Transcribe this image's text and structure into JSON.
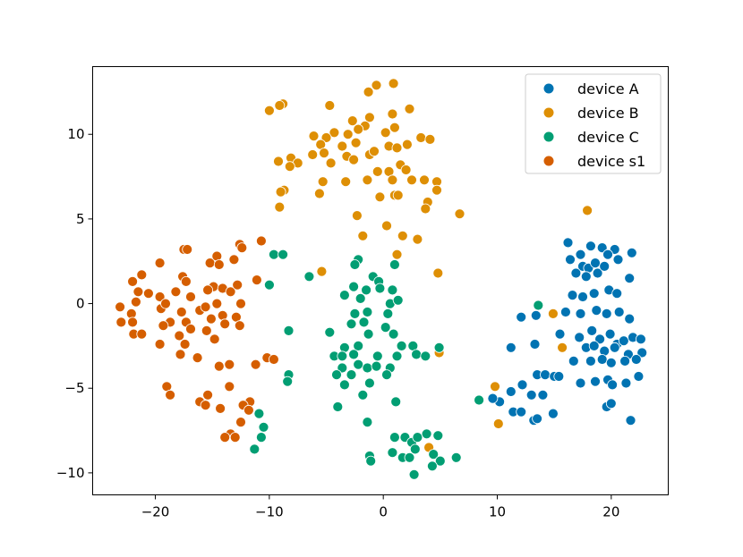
{
  "chart_data": {
    "type": "scatter",
    "title": "",
    "xlabel": "",
    "ylabel": "",
    "xlim": [
      -25.5,
      25.0
    ],
    "ylim": [
      -11.3,
      14.0
    ],
    "xticks": [
      -20,
      -10,
      0,
      10,
      20
    ],
    "yticks": [
      -10,
      -5,
      0,
      5,
      10
    ],
    "xtick_labels": [
      "−20",
      "−10",
      "0",
      "10",
      "20"
    ],
    "ytick_labels": [
      "−10",
      "−5",
      "0",
      "5",
      "10"
    ],
    "grid": false,
    "legend_position": "top-right",
    "series": [
      {
        "name": "device A",
        "color": "#0173b2",
        "points": [
          [
            16.2,
            3.6
          ],
          [
            17.3,
            2.9
          ],
          [
            18.2,
            3.4
          ],
          [
            19.2,
            3.3
          ],
          [
            20.3,
            3.2
          ],
          [
            21.8,
            3.0
          ],
          [
            16.4,
            2.6
          ],
          [
            17.5,
            2.2
          ],
          [
            18.0,
            2.1
          ],
          [
            18.6,
            2.4
          ],
          [
            19.7,
            2.9
          ],
          [
            20.6,
            2.6
          ],
          [
            16.9,
            1.8
          ],
          [
            17.8,
            1.6
          ],
          [
            18.8,
            1.8
          ],
          [
            19.4,
            2.2
          ],
          [
            21.6,
            1.5
          ],
          [
            16.6,
            0.5
          ],
          [
            17.5,
            0.4
          ],
          [
            18.5,
            0.6
          ],
          [
            19.8,
            0.8
          ],
          [
            20.5,
            0.6
          ],
          [
            16.0,
            -0.5
          ],
          [
            17.3,
            -0.6
          ],
          [
            18.7,
            -0.4
          ],
          [
            19.6,
            -0.6
          ],
          [
            20.7,
            -0.5
          ],
          [
            21.6,
            -0.9
          ],
          [
            15.5,
            -1.8
          ],
          [
            17.2,
            -2.0
          ],
          [
            18.3,
            -1.6
          ],
          [
            19.0,
            -2.1
          ],
          [
            19.9,
            -1.8
          ],
          [
            20.5,
            -2.4
          ],
          [
            21.1,
            -2.2
          ],
          [
            21.9,
            -2.0
          ],
          [
            22.6,
            -2.1
          ],
          [
            17.8,
            -2.6
          ],
          [
            18.5,
            -2.5
          ],
          [
            19.4,
            -2.8
          ],
          [
            20.3,
            -2.6
          ],
          [
            21.5,
            -3.0
          ],
          [
            22.7,
            -2.9
          ],
          [
            16.7,
            -3.4
          ],
          [
            18.2,
            -3.4
          ],
          [
            19.2,
            -3.3
          ],
          [
            20.0,
            -3.5
          ],
          [
            21.2,
            -3.4
          ],
          [
            22.2,
            -3.3
          ],
          [
            17.3,
            -4.7
          ],
          [
            18.6,
            -4.6
          ],
          [
            19.7,
            -4.5
          ],
          [
            20.1,
            -4.8
          ],
          [
            21.3,
            -4.7
          ],
          [
            22.4,
            -4.3
          ],
          [
            19.6,
            -6.1
          ],
          [
            20.0,
            -5.9
          ],
          [
            21.7,
            -6.9
          ],
          [
            12.1,
            -0.8
          ],
          [
            13.4,
            -0.7
          ],
          [
            11.2,
            -2.6
          ],
          [
            13.3,
            -2.4
          ],
          [
            13.5,
            -4.2
          ],
          [
            14.2,
            -4.2
          ],
          [
            15.0,
            -4.3
          ],
          [
            15.4,
            -4.3
          ],
          [
            12.2,
            -4.8
          ],
          [
            13.0,
            -5.4
          ],
          [
            14.0,
            -5.4
          ],
          [
            11.2,
            -5.2
          ],
          [
            10.2,
            -5.8
          ],
          [
            9.6,
            -5.6
          ],
          [
            11.4,
            -6.4
          ],
          [
            12.1,
            -6.4
          ],
          [
            13.2,
            -6.9
          ],
          [
            13.5,
            -6.8
          ],
          [
            14.9,
            -6.5
          ]
        ]
      },
      {
        "name": "device B",
        "color": "#de8f05",
        "points": [
          [
            -10.0,
            11.4
          ],
          [
            -8.8,
            11.8
          ],
          [
            -9.1,
            11.7
          ],
          [
            0.9,
            13.0
          ],
          [
            -1.3,
            12.5
          ],
          [
            -0.6,
            12.9
          ],
          [
            -4.7,
            11.7
          ],
          [
            -1.2,
            11.0
          ],
          [
            0.8,
            11.2
          ],
          [
            2.3,
            11.5
          ],
          [
            -2.7,
            10.8
          ],
          [
            1.0,
            10.4
          ],
          [
            -4.3,
            10.1
          ],
          [
            -3.1,
            10.0
          ],
          [
            -1.6,
            10.5
          ],
          [
            -2.2,
            10.3
          ],
          [
            0.2,
            10.1
          ],
          [
            -6.1,
            9.9
          ],
          [
            -5.0,
            9.8
          ],
          [
            -3.6,
            9.3
          ],
          [
            -5.5,
            9.4
          ],
          [
            -2.4,
            9.5
          ],
          [
            0.5,
            9.3
          ],
          [
            2.1,
            9.4
          ],
          [
            3.3,
            9.8
          ],
          [
            4.1,
            9.7
          ],
          [
            -5.2,
            8.9
          ],
          [
            -6.2,
            8.8
          ],
          [
            -3.2,
            8.7
          ],
          [
            -1.2,
            8.8
          ],
          [
            -0.8,
            9.0
          ],
          [
            1.2,
            9.2
          ],
          [
            -9.2,
            8.4
          ],
          [
            -8.1,
            8.6
          ],
          [
            -7.5,
            8.3
          ],
          [
            -8.2,
            8.1
          ],
          [
            -4.6,
            8.3
          ],
          [
            -2.6,
            8.5
          ],
          [
            1.5,
            8.2
          ],
          [
            -0.5,
            7.8
          ],
          [
            0.5,
            7.8
          ],
          [
            2.0,
            7.9
          ],
          [
            2.5,
            7.3
          ],
          [
            3.6,
            7.3
          ],
          [
            -5.3,
            7.2
          ],
          [
            -3.3,
            7.2
          ],
          [
            -1.4,
            7.3
          ],
          [
            0.8,
            7.3
          ],
          [
            4.7,
            7.2
          ],
          [
            -8.7,
            6.7
          ],
          [
            -9.0,
            6.6
          ],
          [
            -5.6,
            6.5
          ],
          [
            -0.3,
            6.3
          ],
          [
            1.0,
            6.4
          ],
          [
            1.3,
            6.4
          ],
          [
            4.7,
            6.7
          ],
          [
            3.9,
            6.0
          ],
          [
            3.7,
            5.6
          ],
          [
            -9.1,
            5.7
          ],
          [
            -2.3,
            5.2
          ],
          [
            6.7,
            5.3
          ],
          [
            0.3,
            4.6
          ],
          [
            -1.8,
            4.0
          ],
          [
            1.7,
            4.0
          ],
          [
            3.0,
            3.8
          ],
          [
            1.2,
            2.9
          ],
          [
            4.8,
            1.8
          ],
          [
            -5.4,
            1.9
          ],
          [
            14.9,
            -0.6
          ],
          [
            15.7,
            -2.6
          ],
          [
            4.9,
            -2.9
          ],
          [
            9.8,
            -4.9
          ],
          [
            10.1,
            -7.1
          ],
          [
            4.0,
            -8.5
          ],
          [
            17.9,
            5.5
          ]
        ]
      },
      {
        "name": "device C",
        "color": "#029e73",
        "points": [
          [
            -9.6,
            2.9
          ],
          [
            -8.8,
            2.9
          ],
          [
            -10.0,
            1.1
          ],
          [
            -6.5,
            1.6
          ],
          [
            -2.2,
            2.6
          ],
          [
            -2.5,
            2.3
          ],
          [
            1.0,
            2.3
          ],
          [
            -0.9,
            1.6
          ],
          [
            -0.4,
            1.3
          ],
          [
            -2.6,
            1.0
          ],
          [
            -1.5,
            0.8
          ],
          [
            -0.3,
            0.9
          ],
          [
            0.8,
            0.8
          ],
          [
            -3.4,
            0.5
          ],
          [
            -2.0,
            0.3
          ],
          [
            0.6,
            0.0
          ],
          [
            1.3,
            0.2
          ],
          [
            -2.5,
            -0.6
          ],
          [
            -1.4,
            -0.5
          ],
          [
            0.4,
            -0.6
          ],
          [
            -2.8,
            -1.2
          ],
          [
            -1.7,
            -1.1
          ],
          [
            0.2,
            -1.4
          ],
          [
            0.9,
            -1.8
          ],
          [
            -4.7,
            -1.7
          ],
          [
            -1.3,
            -1.8
          ],
          [
            -3.4,
            -2.6
          ],
          [
            -2.2,
            -2.5
          ],
          [
            1.6,
            -2.5
          ],
          [
            2.6,
            -2.5
          ],
          [
            4.9,
            -2.6
          ],
          [
            -4.3,
            -3.1
          ],
          [
            -3.6,
            -3.1
          ],
          [
            -2.6,
            -3.0
          ],
          [
            -0.5,
            -3.1
          ],
          [
            1.2,
            -3.1
          ],
          [
            2.9,
            -3.0
          ],
          [
            3.7,
            -3.1
          ],
          [
            -2.2,
            -3.6
          ],
          [
            -1.4,
            -3.8
          ],
          [
            -3.6,
            -3.8
          ],
          [
            -0.6,
            -3.7
          ],
          [
            0.6,
            -3.8
          ],
          [
            -4.1,
            -4.2
          ],
          [
            -2.8,
            -4.2
          ],
          [
            -3.4,
            -4.8
          ],
          [
            -1.2,
            -4.7
          ],
          [
            0.3,
            -4.2
          ],
          [
            -1.8,
            -5.4
          ],
          [
            1.1,
            -5.8
          ],
          [
            -4.0,
            -6.1
          ],
          [
            -1.4,
            -7.0
          ],
          [
            -8.3,
            -1.6
          ],
          [
            -8.3,
            -4.2
          ],
          [
            -8.4,
            -4.6
          ],
          [
            -10.9,
            -6.5
          ],
          [
            -10.5,
            -7.3
          ],
          [
            -10.7,
            -7.9
          ],
          [
            -11.3,
            -8.6
          ],
          [
            8.4,
            -5.7
          ],
          [
            13.6,
            -0.1
          ],
          [
            1.0,
            -7.9
          ],
          [
            1.9,
            -7.9
          ],
          [
            2.5,
            -8.2
          ],
          [
            3.0,
            -7.9
          ],
          [
            3.8,
            -7.7
          ],
          [
            4.8,
            -7.8
          ],
          [
            2.8,
            -8.6
          ],
          [
            1.7,
            -9.1
          ],
          [
            2.3,
            -9.1
          ],
          [
            4.4,
            -8.9
          ],
          [
            5.0,
            -9.3
          ],
          [
            6.4,
            -9.1
          ],
          [
            4.3,
            -9.6
          ],
          [
            2.7,
            -10.1
          ],
          [
            -1.2,
            -9.0
          ],
          [
            -1.1,
            -9.3
          ],
          [
            0.8,
            -8.8
          ]
        ]
      },
      {
        "name": "device s1",
        "color": "#d55e00",
        "points": [
          [
            -23.1,
            -0.2
          ],
          [
            -23.0,
            -1.1
          ],
          [
            -22.0,
            1.3
          ],
          [
            -21.2,
            1.7
          ],
          [
            -21.5,
            0.7
          ],
          [
            -21.7,
            0.1
          ],
          [
            -22.1,
            -0.6
          ],
          [
            -22.0,
            -1.1
          ],
          [
            -21.9,
            -1.8
          ],
          [
            -21.2,
            -1.8
          ],
          [
            -20.6,
            0.6
          ],
          [
            -19.6,
            2.4
          ],
          [
            -19.6,
            0.4
          ],
          [
            -19.5,
            -0.3
          ],
          [
            -19.1,
            0.0
          ],
          [
            -18.7,
            -1.1
          ],
          [
            -19.3,
            -1.3
          ],
          [
            -19.6,
            -2.4
          ],
          [
            -18.2,
            0.7
          ],
          [
            -17.6,
            1.6
          ],
          [
            -17.3,
            1.3
          ],
          [
            -17.5,
            3.2
          ],
          [
            -17.2,
            3.2
          ],
          [
            -16.9,
            0.4
          ],
          [
            -17.7,
            -0.5
          ],
          [
            -17.3,
            -1.1
          ],
          [
            -17.9,
            -1.9
          ],
          [
            -17.4,
            -2.4
          ],
          [
            -16.9,
            -1.5
          ],
          [
            -16.1,
            -0.4
          ],
          [
            -16.3,
            -3.2
          ],
          [
            -17.8,
            -3.0
          ],
          [
            -15.2,
            2.4
          ],
          [
            -14.6,
            2.8
          ],
          [
            -14.4,
            2.3
          ],
          [
            -14.9,
            1.0
          ],
          [
            -15.4,
            0.8
          ],
          [
            -14.6,
            0.0
          ],
          [
            -15.6,
            -0.2
          ],
          [
            -15.1,
            -0.9
          ],
          [
            -14.1,
            -0.7
          ],
          [
            -15.5,
            -1.6
          ],
          [
            -14.8,
            -2.1
          ],
          [
            -13.9,
            -1.2
          ],
          [
            -14.1,
            0.9
          ],
          [
            -13.4,
            0.7
          ],
          [
            -12.8,
            1.1
          ],
          [
            -12.5,
            0.0
          ],
          [
            -12.9,
            -0.8
          ],
          [
            -12.6,
            -1.3
          ],
          [
            -13.1,
            2.6
          ],
          [
            -12.6,
            3.5
          ],
          [
            -12.4,
            3.3
          ],
          [
            -11.1,
            1.4
          ],
          [
            -10.7,
            3.7
          ],
          [
            -14.4,
            -3.7
          ],
          [
            -13.5,
            -3.6
          ],
          [
            -11.2,
            -3.6
          ],
          [
            -10.2,
            -3.2
          ],
          [
            -9.6,
            -3.3
          ],
          [
            -19.0,
            -4.9
          ],
          [
            -18.7,
            -5.4
          ],
          [
            -16.1,
            -5.8
          ],
          [
            -15.6,
            -6.0
          ],
          [
            -15.4,
            -5.4
          ],
          [
            -14.3,
            -6.2
          ],
          [
            -13.5,
            -4.9
          ],
          [
            -11.7,
            -5.8
          ],
          [
            -12.3,
            -6.0
          ],
          [
            -11.8,
            -6.3
          ],
          [
            -12.5,
            -7.0
          ],
          [
            -13.4,
            -7.7
          ],
          [
            -13.9,
            -7.9
          ],
          [
            -13.0,
            -7.9
          ]
        ]
      }
    ]
  }
}
